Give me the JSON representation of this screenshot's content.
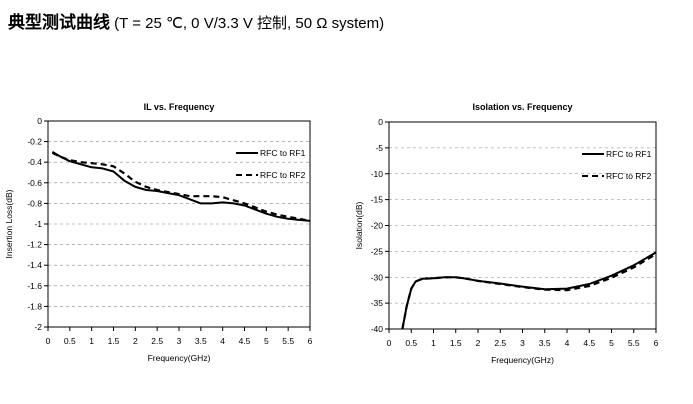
{
  "header": {
    "title_bold": "典型测试曲线",
    "title_rest": " (T = 25 ℃, 0 V/3.3 V 控制, 50 Ω system)"
  },
  "chart_data": [
    {
      "type": "line",
      "title": "IL vs. Frequency",
      "xlabel": "Frequency(GHz)",
      "ylabel": "Insertion Loss(dB)",
      "xlim": [
        0,
        6
      ],
      "ylim": [
        -2,
        0
      ],
      "x_ticks": [
        "0",
        "0.5",
        "1",
        "1.5",
        "2",
        "2.5",
        "3",
        "3.5",
        "4",
        "4.5",
        "5",
        "5.5",
        "6"
      ],
      "y_ticks": [
        "0",
        "-0.2",
        "-0.4",
        "-0.6",
        "-0.8",
        "-1",
        "-1.2",
        "-1.4",
        "-1.6",
        "-1.8",
        "-2"
      ],
      "grid": "horizontal-dashed",
      "legend_position": "top-right",
      "series": [
        {
          "name": "RFC to RF1",
          "style": "solid",
          "x": [
            0.1,
            0.3,
            0.5,
            0.75,
            1.0,
            1.25,
            1.5,
            1.75,
            2.0,
            2.25,
            2.5,
            2.75,
            3.0,
            3.25,
            3.5,
            3.75,
            4.0,
            4.25,
            4.5,
            4.75,
            5.0,
            5.25,
            5.5,
            5.75,
            6.0
          ],
          "y": [
            -0.3,
            -0.35,
            -0.39,
            -0.42,
            -0.45,
            -0.46,
            -0.49,
            -0.58,
            -0.64,
            -0.67,
            -0.68,
            -0.7,
            -0.72,
            -0.76,
            -0.8,
            -0.8,
            -0.79,
            -0.8,
            -0.82,
            -0.86,
            -0.9,
            -0.93,
            -0.95,
            -0.96,
            -0.97
          ]
        },
        {
          "name": "RFC to RF2",
          "style": "dashed",
          "x": [
            0.1,
            0.3,
            0.5,
            0.75,
            1.0,
            1.25,
            1.5,
            1.75,
            2.0,
            2.25,
            2.5,
            2.75,
            3.0,
            3.25,
            3.5,
            3.75,
            4.0,
            4.25,
            4.5,
            4.75,
            5.0,
            5.25,
            5.5,
            5.75,
            6.0
          ],
          "y": [
            -0.31,
            -0.35,
            -0.38,
            -0.4,
            -0.41,
            -0.42,
            -0.44,
            -0.51,
            -0.59,
            -0.64,
            -0.67,
            -0.69,
            -0.71,
            -0.73,
            -0.73,
            -0.73,
            -0.74,
            -0.77,
            -0.8,
            -0.84,
            -0.88,
            -0.91,
            -0.93,
            -0.95,
            -0.97
          ]
        }
      ]
    },
    {
      "type": "line",
      "title": "Isolation vs. Frequency",
      "xlabel": "Frequency(GHz)",
      "ylabel": "Isolation(dB)",
      "xlim": [
        0,
        6
      ],
      "ylim": [
        -40,
        0
      ],
      "x_ticks": [
        "0",
        "0.5",
        "1",
        "1.5",
        "2",
        "2.5",
        "3",
        "3.5",
        "4",
        "4.5",
        "5",
        "5.5",
        "6"
      ],
      "y_ticks": [
        "0",
        "-5",
        "-10",
        "-15",
        "-20",
        "-25",
        "-30",
        "-35",
        "-40"
      ],
      "grid": "horizontal-dashed",
      "legend_position": "top-right",
      "series": [
        {
          "name": "RFC to RF1",
          "style": "solid",
          "x": [
            0.3,
            0.4,
            0.5,
            0.6,
            0.75,
            1.0,
            1.25,
            1.5,
            1.75,
            2.0,
            2.5,
            3.0,
            3.5,
            4.0,
            4.5,
            5.0,
            5.5,
            6.0
          ],
          "y": [
            -40.0,
            -35.5,
            -32.2,
            -30.8,
            -30.3,
            -30.2,
            -30.0,
            -30.0,
            -30.3,
            -30.7,
            -31.2,
            -31.8,
            -32.3,
            -32.2,
            -31.3,
            -29.7,
            -27.7,
            -25.2
          ]
        },
        {
          "name": "RFC to RF2",
          "style": "dashed",
          "x": [
            0.3,
            0.4,
            0.5,
            0.6,
            0.75,
            1.0,
            1.25,
            1.5,
            1.75,
            2.0,
            2.5,
            3.0,
            3.5,
            4.0,
            4.5,
            5.0,
            5.5,
            6.0
          ],
          "y": [
            -40.0,
            -35.5,
            -32.2,
            -30.8,
            -30.3,
            -30.2,
            -30.0,
            -30.0,
            -30.3,
            -30.7,
            -31.3,
            -31.9,
            -32.4,
            -32.5,
            -31.7,
            -30.1,
            -28.1,
            -25.5
          ]
        }
      ]
    }
  ]
}
